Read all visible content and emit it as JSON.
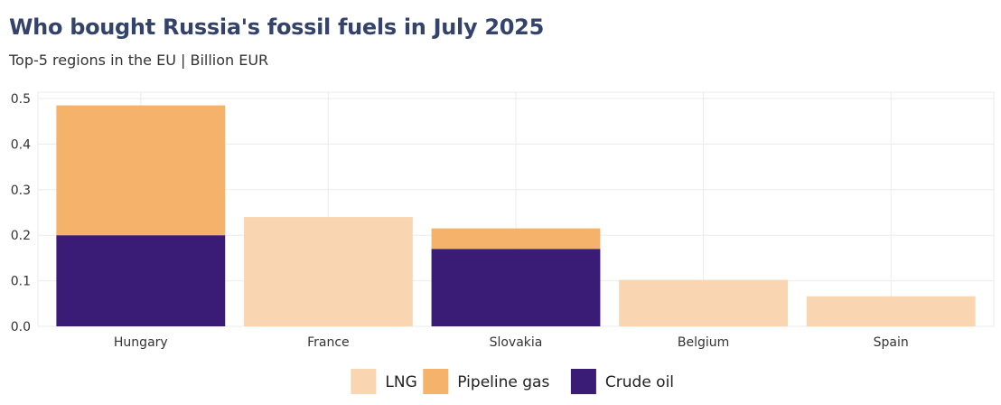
{
  "chart_data": {
    "type": "bar",
    "stacked": true,
    "title": "Who bought Russia's fossil fuels in July 2025",
    "subtitle": "Top-5 regions in the EU | Billion EUR",
    "xlabel": "",
    "ylabel": "",
    "categories": [
      "Hungary",
      "France",
      "Slovakia",
      "Belgium",
      "Spain"
    ],
    "series": [
      {
        "name": "Crude oil",
        "color": "#3a1b75",
        "values": [
          0.2,
          0,
          0.17,
          0,
          0
        ]
      },
      {
        "name": "Pipeline gas",
        "color": "#f4b26b",
        "values": [
          0.285,
          0,
          0.045,
          0,
          0
        ]
      },
      {
        "name": "LNG",
        "color": "#f9d6b1",
        "values": [
          0,
          0.24,
          0,
          0.102,
          0.066
        ]
      }
    ],
    "legend_order": [
      "LNG",
      "Pipeline gas",
      "Crude oil"
    ],
    "ylim": [
      0,
      0.5
    ],
    "yticks": [
      "0.0",
      "0.1",
      "0.2",
      "0.3",
      "0.4",
      "0.5"
    ],
    "grid": true,
    "legend_position": "bottom"
  }
}
